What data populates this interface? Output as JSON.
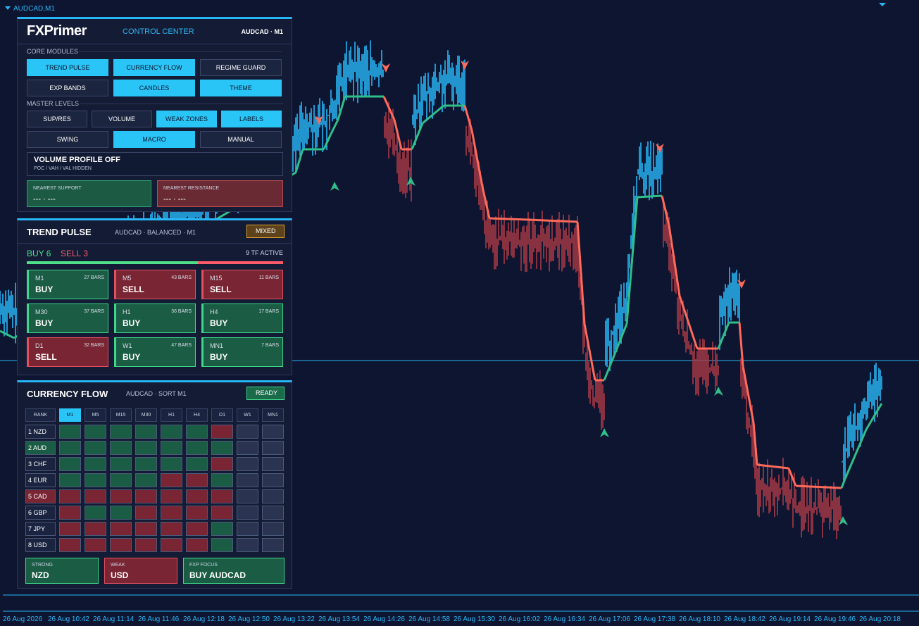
{
  "chart_label": "AUDCAD,M1",
  "control_center": {
    "logo": "FXPrimer",
    "title": "CONTROL CENTER",
    "symbol": "AUDCAD · M1",
    "core_modules": {
      "heading": "CORE MODULES",
      "buttons": [
        {
          "label": "TREND PULSE",
          "active": true
        },
        {
          "label": "CURRENCY FLOW",
          "active": true
        },
        {
          "label": "REGIME GUARD",
          "active": false
        },
        {
          "label": "EXP BANDS",
          "active": false
        },
        {
          "label": "CANDLES",
          "active": true
        },
        {
          "label": "THEME",
          "active": true
        }
      ]
    },
    "master_levels": {
      "heading": "MASTER LEVELS",
      "buttons": [
        {
          "label": "SUP/RES",
          "active": false
        },
        {
          "label": "VOLUME",
          "active": false
        },
        {
          "label": "WEAK ZONES",
          "active": true
        },
        {
          "label": "LABELS",
          "active": true
        },
        {
          "label": "SWING",
          "active": false
        },
        {
          "label": "MACRO",
          "active": true
        },
        {
          "label": "MANUAL",
          "active": false
        }
      ]
    },
    "volume_profile": {
      "title": "VOLUME PROFILE OFF",
      "subtitle": "POC / VAH / VAL HIDDEN"
    },
    "support": {
      "label": "NEAREST SUPPORT",
      "value": "--- · ---",
      "color": "#1c5a44",
      "border": "#2f9c6c"
    },
    "resistance": {
      "label": "NEAREST RESISTANCE",
      "value": "--- · ---",
      "color": "#6a2a33",
      "border": "#b84a52"
    }
  },
  "trend_pulse": {
    "title": "TREND PULSE",
    "subtitle": "AUDCAD · BALANCED · M1",
    "badge": "MIXED",
    "buy": "BUY 6",
    "sell": "SELL 3",
    "active": "9 TF ACTIVE",
    "tiles": [
      {
        "tf": "M1",
        "bars": "27 BARS",
        "signal": "BUY",
        "color": "#1b5c45",
        "border": "#3ed68a"
      },
      {
        "tf": "M5",
        "bars": "43 BARS",
        "signal": "SELL",
        "color": "#7a2533",
        "border": "#e0505f"
      },
      {
        "tf": "M15",
        "bars": "11 BARS",
        "signal": "SELL",
        "color": "#7a2533",
        "border": "#e0505f"
      },
      {
        "tf": "M30",
        "bars": "37 BARS",
        "signal": "BUY",
        "color": "#1b5c45",
        "border": "#3ed68a"
      },
      {
        "tf": "H1",
        "bars": "36 BARS",
        "signal": "BUY",
        "color": "#1b5c45",
        "border": "#3ed68a"
      },
      {
        "tf": "H4",
        "bars": "17 BARS",
        "signal": "BUY",
        "color": "#1b5c45",
        "border": "#3ed68a"
      },
      {
        "tf": "D1",
        "bars": "32 BARS",
        "signal": "SELL",
        "color": "#7a2533",
        "border": "#e0505f"
      },
      {
        "tf": "W1",
        "bars": "47 BARS",
        "signal": "BUY",
        "color": "#1b5c45",
        "border": "#3ed68a"
      },
      {
        "tf": "MN1",
        "bars": "7 BARS",
        "signal": "BUY",
        "color": "#1b5c45",
        "border": "#3ed68a"
      }
    ]
  },
  "currency_flow": {
    "title": "CURRENCY FLOW",
    "subtitle": "AUDCAD · SORT M1",
    "badge": "READY",
    "columns": [
      "RANK",
      "M1",
      "M5",
      "M15",
      "M30",
      "H1",
      "H4",
      "D1",
      "W1",
      "MN1"
    ],
    "active_column": 1,
    "rows": [
      {
        "label": "1 NZD",
        "color": "#1a2440",
        "cells": [
          "#1b5c45",
          "#1b5c45",
          "#1b5c45",
          "#1b5c45",
          "#1b5c45",
          "#1b5c45",
          "#7a2533",
          "#2a3450",
          "#2a3450"
        ]
      },
      {
        "label": "2 AUD",
        "color": "#1b5c45",
        "cells": [
          "#1b5c45",
          "#1b5c45",
          "#1b5c45",
          "#1b5c45",
          "#1b5c45",
          "#1b5c45",
          "#1b5c45",
          "#2a3450",
          "#2a3450"
        ]
      },
      {
        "label": "3 CHF",
        "color": "#1a2440",
        "cells": [
          "#1b5c45",
          "#1b5c45",
          "#1b5c45",
          "#1b5c45",
          "#1b5c45",
          "#1b5c45",
          "#7a2533",
          "#2a3450",
          "#2a3450"
        ]
      },
      {
        "label": "4 EUR",
        "color": "#1a2440",
        "cells": [
          "#1b5c45",
          "#1b5c45",
          "#1b5c45",
          "#1b5c45",
          "#7a2533",
          "#7a2533",
          "#1b5c45",
          "#2a3450",
          "#2a3450"
        ]
      },
      {
        "label": "5 CAD",
        "color": "#7a2533",
        "cells": [
          "#7a2533",
          "#7a2533",
          "#7a2533",
          "#7a2533",
          "#7a2533",
          "#7a2533",
          "#7a2533",
          "#2a3450",
          "#2a3450"
        ]
      },
      {
        "label": "6 GBP",
        "color": "#1a2440",
        "cells": [
          "#7a2533",
          "#1b5c45",
          "#1b5c45",
          "#7a2533",
          "#7a2533",
          "#7a2533",
          "#7a2533",
          "#2a3450",
          "#2a3450"
        ]
      },
      {
        "label": "7 JPY",
        "color": "#1a2440",
        "cells": [
          "#7a2533",
          "#7a2533",
          "#7a2533",
          "#7a2533",
          "#7a2533",
          "#7a2533",
          "#1b5c45",
          "#2a3450",
          "#2a3450"
        ]
      },
      {
        "label": "8 USD",
        "color": "#1a2440",
        "cells": [
          "#7a2533",
          "#7a2533",
          "#7a2533",
          "#7a2533",
          "#7a2533",
          "#7a2533",
          "#1b5c45",
          "#2a3450",
          "#2a3450"
        ]
      }
    ],
    "strong": {
      "label": "STRONG",
      "value": "NZD",
      "color": "#1b5c45",
      "border": "#3ed68a"
    },
    "weak": {
      "label": "WEAK",
      "value": "USD",
      "color": "#7a2533",
      "border": "#e0505f"
    },
    "focus": {
      "label": "FXP FOCUS",
      "value": "BUY AUDCAD",
      "color": "#1b5c45",
      "border": "#3ed68a"
    }
  },
  "time_axis": [
    "26 Aug 2026",
    "26 Aug 10:42",
    "26 Aug 11:14",
    "26 Aug 11:46",
    "26 Aug 12:18",
    "26 Aug 12:50",
    "26 Aug 13:22",
    "26 Aug 13:54",
    "26 Aug 14:26",
    "26 Aug 14:58",
    "26 Aug 15:30",
    "26 Aug 16:02",
    "26 Aug 16:34",
    "26 Aug 17:06",
    "26 Aug 17:38",
    "26 Aug 18:10",
    "26 Aug 18:42",
    "26 Aug 19:14",
    "26 Aug 19:46",
    "26 Aug 20:18"
  ]
}
